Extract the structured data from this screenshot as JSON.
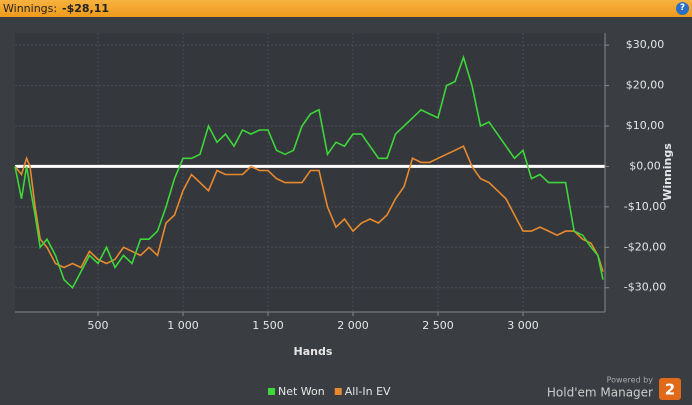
{
  "header": {
    "label": "Winnings:",
    "value": "-$28,11",
    "help": "?"
  },
  "chart_data": {
    "type": "line",
    "xlabel": "Hands",
    "ylabel": "Winnings",
    "x": [
      12,
      50,
      80,
      100,
      130,
      160,
      200,
      250,
      300,
      350,
      400,
      450,
      500,
      550,
      600,
      650,
      700,
      750,
      800,
      850,
      900,
      950,
      1000,
      1050,
      1100,
      1150,
      1200,
      1250,
      1300,
      1350,
      1400,
      1450,
      1500,
      1550,
      1600,
      1650,
      1700,
      1750,
      1800,
      1850,
      1900,
      1950,
      2000,
      2050,
      2100,
      2150,
      2200,
      2250,
      2300,
      2350,
      2400,
      2450,
      2500,
      2550,
      2600,
      2650,
      2700,
      2750,
      2800,
      2850,
      2900,
      2950,
      3000,
      3050,
      3100,
      3150,
      3200,
      3250,
      3300,
      3350,
      3400,
      3440,
      3470
    ],
    "series": [
      {
        "name": "Net Won",
        "color": "#3ed63a",
        "values": [
          0,
          -8,
          0,
          -5,
          -12,
          -20,
          -18,
          -22,
          -28,
          -30,
          -26,
          -22,
          -24,
          -20,
          -25,
          -22,
          -24,
          -18,
          -18,
          -16,
          -10,
          -3,
          2,
          2,
          3,
          10,
          6,
          8,
          5,
          9,
          8,
          9,
          9,
          4,
          3,
          4,
          10,
          13,
          14,
          3,
          6,
          5,
          8,
          8,
          5,
          2,
          2,
          8,
          10,
          12,
          14,
          13,
          12,
          20,
          21,
          27,
          20,
          10,
          11,
          8,
          5,
          2,
          4,
          -3,
          -2,
          -4,
          -4,
          -4,
          -16,
          -17,
          -20,
          -22,
          -28
        ]
      },
      {
        "name": "All-In EV",
        "color": "#e8892e",
        "values": [
          0,
          -2,
          2,
          0,
          -10,
          -18,
          -20,
          -24,
          -25,
          -24,
          -25,
          -21,
          -23,
          -24,
          -23,
          -20,
          -21,
          -22,
          -20,
          -22,
          -14,
          -12,
          -6,
          -2,
          -4,
          -6,
          -1,
          -2,
          -2,
          -2,
          0,
          -1,
          -1,
          -3,
          -4,
          -4,
          -4,
          -1,
          -1,
          -10,
          -15,
          -13,
          -16,
          -14,
          -13,
          -14,
          -12,
          -8,
          -5,
          2,
          1,
          1,
          2,
          3,
          4,
          5,
          0,
          -3,
          -4,
          -6,
          -8,
          -12,
          -16,
          -16,
          -15,
          -16,
          -17,
          -16,
          -16,
          -18,
          -19,
          -22,
          -26
        ]
      }
    ],
    "xlim": [
      12,
      3482
    ],
    "xticks": [
      500,
      {
        "value": 1000,
        "label": "1 000"
      },
      {
        "value": 1500,
        "label": "1 500"
      },
      {
        "value": 2000,
        "label": "2 000"
      },
      {
        "value": 2500,
        "label": "2 500"
      },
      {
        "value": 3000,
        "label": "3 000"
      }
    ],
    "ylim": [
      -36,
      33
    ],
    "yticks": [
      {
        "value": 30,
        "label": "$30,00"
      },
      {
        "value": 20,
        "label": "$20,00"
      },
      {
        "value": 10,
        "label": "$10,00"
      },
      {
        "value": 0,
        "label": "$0,00"
      },
      {
        "value": -10,
        "label": "-$10,00"
      },
      {
        "value": -20,
        "label": "-$20,00"
      },
      {
        "value": -30,
        "label": "-$30,00"
      }
    ],
    "grid": true
  },
  "branding": {
    "powered": "Powered by",
    "product": "Hold'em Manager",
    "badge": "2"
  }
}
